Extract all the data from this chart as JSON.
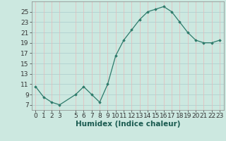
{
  "x": [
    0,
    1,
    2,
    3,
    5,
    6,
    7,
    8,
    9,
    10,
    11,
    12,
    13,
    14,
    15,
    16,
    17,
    18,
    19,
    20,
    21,
    22,
    23
  ],
  "y": [
    10.5,
    8.5,
    7.5,
    7.0,
    9.0,
    10.5,
    9.0,
    7.5,
    11.0,
    16.5,
    19.5,
    21.5,
    23.5,
    25.0,
    25.5,
    26.0,
    25.0,
    23.0,
    21.0,
    19.5,
    19.0,
    19.0,
    19.5
  ],
  "line_color": "#2d7a6a",
  "marker_color": "#2d7a6a",
  "bg_color": "#cce8e0",
  "grid_color_h": "#aacccc",
  "grid_color_v": "#e8b8b8",
  "xlabel": "Humidex (Indice chaleur)",
  "xlim": [
    -0.5,
    23.5
  ],
  "ylim": [
    6,
    27
  ],
  "yticks": [
    7,
    9,
    11,
    13,
    15,
    17,
    19,
    21,
    23,
    25
  ],
  "xticks": [
    0,
    1,
    2,
    3,
    5,
    6,
    7,
    8,
    9,
    10,
    11,
    12,
    13,
    14,
    15,
    16,
    17,
    18,
    19,
    20,
    21,
    22,
    23
  ],
  "font_size": 6.5,
  "xlabel_fontsize": 7.5
}
